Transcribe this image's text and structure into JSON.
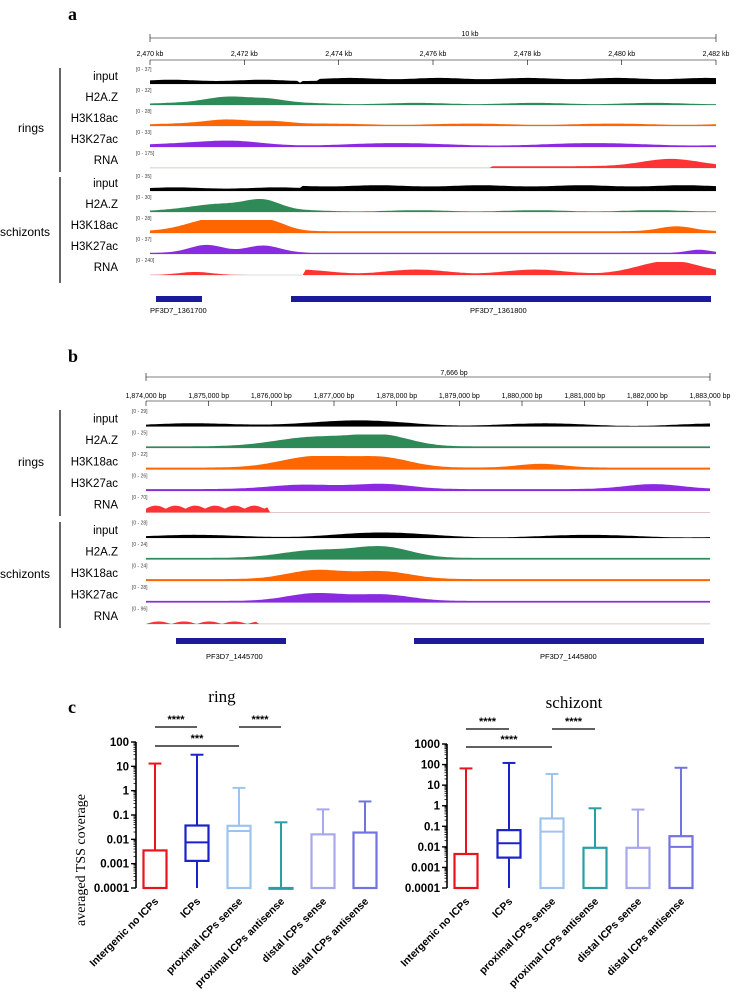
{
  "panel_a": {
    "letter": "a",
    "scale_label": "10 kb",
    "coord_ticks": [
      "2,470 kb",
      "2,472 kb",
      "2,474 kb",
      "2,476 kb",
      "2,478 kb",
      "2,480 kb",
      "2,482 kb"
    ],
    "group_rings": "rings",
    "group_schizonts": "schizonts",
    "tracks": [
      {
        "label": "input",
        "range": "[0 - 37]",
        "color": "#000000"
      },
      {
        "label": "H2A.Z",
        "range": "[0 - 32]",
        "color": "#2e8b57"
      },
      {
        "label": "H3K18ac",
        "range": "[0 - 28]",
        "color": "#ff6600"
      },
      {
        "label": "H3K27ac",
        "range": "[0 - 33]",
        "color": "#8a2be2"
      },
      {
        "label": "RNA",
        "range": "[0 - 175]",
        "color": "#ff3333"
      },
      {
        "label": "input",
        "range": "[0 - 35]",
        "color": "#000000"
      },
      {
        "label": "H2A.Z",
        "range": "[0 - 30]",
        "color": "#2e8b57"
      },
      {
        "label": "H3K18ac",
        "range": "[0 - 28]",
        "color": "#ff6600"
      },
      {
        "label": "H3K27ac",
        "range": "[0 - 37]",
        "color": "#8a2be2"
      },
      {
        "label": "RNA",
        "range": "[0 - 240]",
        "color": "#ff3333"
      }
    ],
    "genes": [
      "PF3D7_1361700",
      "PF3D7_1361800"
    ]
  },
  "panel_b": {
    "letter": "b",
    "scale_label": "7,666 bp",
    "coord_ticks": [
      "1,874,000 bp",
      "1,875,000 bp",
      "1,876,000 bp",
      "1,877,000 bp",
      "1,878,000 bp",
      "1,879,000 bp",
      "1,880,000 bp",
      "1,881,000 bp",
      "1,882,000 bp",
      "1,883,000 bp"
    ],
    "group_rings": "rings",
    "group_schizonts": "schizonts",
    "tracks": [
      {
        "label": "input",
        "range": "[0 - 29]",
        "color": "#000000"
      },
      {
        "label": "H2A.Z",
        "range": "[0 - 25]",
        "color": "#2e8b57"
      },
      {
        "label": "H3K18ac",
        "range": "[0 - 22]",
        "color": "#ff6600"
      },
      {
        "label": "H3K27ac",
        "range": "[0 - 26]",
        "color": "#8a2be2"
      },
      {
        "label": "RNA",
        "range": "[0 - 70]",
        "color": "#ff3333"
      },
      {
        "label": "input",
        "range": "[0 - 28]",
        "color": "#000000"
      },
      {
        "label": "H2A.Z",
        "range": "[0 - 24]",
        "color": "#2e8b57"
      },
      {
        "label": "H3K18ac",
        "range": "[0 - 24]",
        "color": "#ff6600"
      },
      {
        "label": "H3K27ac",
        "range": "[0 - 28]",
        "color": "#8a2be2"
      },
      {
        "label": "RNA",
        "range": "[0 - 96]",
        "color": "#ff3333"
      }
    ],
    "genes": [
      "PF3D7_1445700",
      "PF3D7_1445800"
    ]
  },
  "panel_c": {
    "letter": "c",
    "ylabel": "averaged TSS coverage",
    "chart_data": [
      {
        "type": "box",
        "title": "ring",
        "ylabel": "averaged TSS coverage",
        "yscale": "log",
        "ylim": [
          0.0001,
          100
        ],
        "yticks": [
          "100",
          "10",
          "1",
          "0.1",
          "0.01",
          "0.001",
          "0.0001"
        ],
        "categories": [
          "Intergenic no ICPs",
          "ICPs",
          "proximal ICPs sense",
          "proximal ICPs antisense",
          "distal ICPs sense",
          "distal ICPs antisense"
        ],
        "colors": [
          "#e8141c",
          "#1c22c8",
          "#9ec4ee",
          "#2a9fa3",
          "#a8a8ec",
          "#7272e0"
        ],
        "boxes": [
          {
            "min": 0.0001,
            "q1": 0.0001,
            "median": 0.0001,
            "q3": 0.0035,
            "max": 13
          },
          {
            "min": 0.0001,
            "q1": 0.0013,
            "median": 0.0075,
            "q3": 0.037,
            "max": 30
          },
          {
            "min": 0.0001,
            "q1": 0.0001,
            "median": 0.022,
            "q3": 0.036,
            "max": 1.3
          },
          {
            "min": 0.0001,
            "q1": 0.0001,
            "median": 0.0001,
            "q3": 0.0001,
            "max": 0.05
          },
          {
            "min": 0.0001,
            "q1": 0.0001,
            "median": 0.0001,
            "q3": 0.016,
            "max": 0.17
          },
          {
            "min": 0.0001,
            "q1": 0.0001,
            "median": 0.0001,
            "q3": 0.019,
            "max": 0.36
          }
        ],
        "significance": [
          {
            "from": 0,
            "to": 1,
            "label": "****"
          },
          {
            "from": 2,
            "to": 3,
            "label": "****"
          },
          {
            "from": 0,
            "to": 2,
            "label": "***"
          }
        ]
      },
      {
        "type": "box",
        "title": "schizont",
        "yscale": "log",
        "ylim": [
          0.0001,
          1000
        ],
        "yticks": [
          "1000",
          "100",
          "10",
          "1",
          "0.1",
          "0.01",
          "0.001",
          "0.0001"
        ],
        "categories": [
          "Intergenic no ICPs",
          "ICPs",
          "proximal ICPs sense",
          "proximal ICPs antisense",
          "distal ICPs sense",
          "distal ICPs antisense"
        ],
        "colors": [
          "#e8141c",
          "#1c22c8",
          "#9ec4ee",
          "#2a9fa3",
          "#a8a8ec",
          "#7272e0"
        ],
        "boxes": [
          {
            "min": 0.0001,
            "q1": 0.0001,
            "median": 0.0001,
            "q3": 0.0045,
            "max": 65
          },
          {
            "min": 0.0001,
            "q1": 0.003,
            "median": 0.015,
            "q3": 0.065,
            "max": 120
          },
          {
            "min": 0.0001,
            "q1": 0.0001,
            "median": 0.055,
            "q3": 0.24,
            "max": 35
          },
          {
            "min": 0.0001,
            "q1": 0.0001,
            "median": 0.0001,
            "q3": 0.009,
            "max": 0.75
          },
          {
            "min": 0.0001,
            "q1": 0.0001,
            "median": 0.0001,
            "q3": 0.009,
            "max": 0.65
          },
          {
            "min": 0.0001,
            "q1": 0.0001,
            "median": 0.01,
            "q3": 0.033,
            "max": 70
          }
        ],
        "significance": [
          {
            "from": 0,
            "to": 1,
            "label": "****"
          },
          {
            "from": 2,
            "to": 3,
            "label": "****"
          },
          {
            "from": 0,
            "to": 2,
            "label": "****"
          }
        ]
      }
    ]
  }
}
